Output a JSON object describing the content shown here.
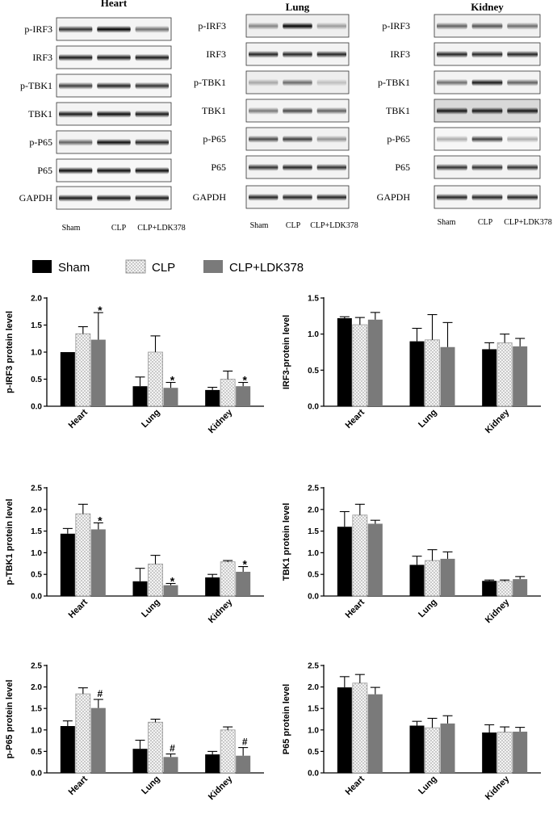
{
  "blot_panels": [
    {
      "tissue": "Heart",
      "rows": [
        "p-IRF3",
        "IRF3",
        "p-TBK1",
        "TBK1",
        "p-P65",
        "P65",
        "GAPDH"
      ],
      "lanes": [
        "Sham",
        "CLP",
        "CLP+LDK378"
      ]
    },
    {
      "tissue": "Lung",
      "rows": [
        "p-IRF3",
        "IRF3",
        "p-TBK1",
        "TBK1",
        "p-P65",
        "P65",
        "GAPDH"
      ],
      "lanes": [
        "Sham",
        "CLP",
        "CLP+LDK378"
      ]
    },
    {
      "tissue": "Kidney",
      "rows": [
        "p-IRF3",
        "IRF3",
        "p-TBK1",
        "TBK1",
        "p-P65",
        "P65",
        "GAPDH"
      ],
      "lanes": [
        "Sham",
        "CLP",
        "CLP+LDK378"
      ]
    }
  ],
  "legend": [
    {
      "name": "Sham",
      "pattern": "solid-black"
    },
    {
      "name": "CLP",
      "pattern": "dotted"
    },
    {
      "name": "CLP+LDK378",
      "pattern": "solid-gray"
    }
  ],
  "colors": {
    "sham": "#000000",
    "clp": "#f4f4f4",
    "clp_dots": "#8a8a8a",
    "ldk": "#7a7a7a"
  },
  "chart_data": [
    {
      "type": "bar",
      "ylabel": "p-IRF3 protein level",
      "categories": [
        "Heart",
        "Lung",
        "Kidney"
      ],
      "ylim": [
        0,
        2.0
      ],
      "ticks": [
        0.0,
        0.5,
        1.0,
        1.5,
        2.0
      ],
      "series": [
        {
          "name": "Sham",
          "values": [
            1.0,
            0.37,
            0.3
          ],
          "errors": [
            0,
            0.17,
            0.05
          ]
        },
        {
          "name": "CLP",
          "values": [
            1.34,
            1.0,
            0.5
          ],
          "errors": [
            0.13,
            0.3,
            0.15
          ]
        },
        {
          "name": "CLP+LDK378",
          "values": [
            1.23,
            0.34,
            0.37
          ],
          "errors": [
            0.5,
            0.1,
            0.07
          ]
        }
      ],
      "annotations": [
        {
          "series": 2,
          "category": 0,
          "text": "*"
        },
        {
          "series": 2,
          "category": 1,
          "text": "*"
        },
        {
          "series": 2,
          "category": 2,
          "text": "*"
        }
      ]
    },
    {
      "type": "bar",
      "ylabel": "IRF3-protein level",
      "categories": [
        "Heart",
        "Lung",
        "Kidney"
      ],
      "ylim": [
        0,
        1.5
      ],
      "ticks": [
        0.0,
        0.5,
        1.0,
        1.5
      ],
      "series": [
        {
          "name": "Sham",
          "values": [
            1.22,
            0.9,
            0.79
          ],
          "errors": [
            0.02,
            0.18,
            0.09
          ]
        },
        {
          "name": "CLP",
          "values": [
            1.13,
            0.92,
            0.88
          ],
          "errors": [
            0.1,
            0.35,
            0.12
          ]
        },
        {
          "name": "CLP+LDK378",
          "values": [
            1.2,
            0.82,
            0.83
          ],
          "errors": [
            0.1,
            0.34,
            0.11
          ]
        }
      ],
      "annotations": []
    },
    {
      "type": "bar",
      "ylabel": "p-TBK1 protein level",
      "categories": [
        "Heart",
        "Lung",
        "Kidney"
      ],
      "ylim": [
        0,
        2.5
      ],
      "ticks": [
        0.0,
        0.5,
        1.0,
        1.5,
        2.0,
        2.5
      ],
      "series": [
        {
          "name": "Sham",
          "values": [
            1.44,
            0.34,
            0.43
          ],
          "errors": [
            0.12,
            0.3,
            0.07
          ]
        },
        {
          "name": "CLP",
          "values": [
            1.9,
            0.74,
            0.79
          ],
          "errors": [
            0.22,
            0.2,
            0.03
          ]
        },
        {
          "name": "CLP+LDK378",
          "values": [
            1.54,
            0.25,
            0.56
          ],
          "errors": [
            0.15,
            0.04,
            0.12
          ]
        }
      ],
      "annotations": [
        {
          "series": 2,
          "category": 0,
          "text": "*"
        },
        {
          "series": 2,
          "category": 1,
          "text": "*"
        },
        {
          "series": 2,
          "category": 2,
          "text": "*"
        }
      ]
    },
    {
      "type": "bar",
      "ylabel": "TBK1 protein level",
      "categories": [
        "Heart",
        "Lung",
        "Kidney"
      ],
      "ylim": [
        0,
        2.5
      ],
      "ticks": [
        0.0,
        0.5,
        1.0,
        1.5,
        2.0,
        2.5
      ],
      "series": [
        {
          "name": "Sham",
          "values": [
            1.6,
            0.72,
            0.35
          ],
          "errors": [
            0.35,
            0.2,
            0.02
          ]
        },
        {
          "name": "CLP",
          "values": [
            1.87,
            0.82,
            0.34
          ],
          "errors": [
            0.25,
            0.25,
            0.03
          ]
        },
        {
          "name": "CLP+LDK378",
          "values": [
            1.67,
            0.86,
            0.39
          ],
          "errors": [
            0.08,
            0.16,
            0.06
          ]
        }
      ],
      "annotations": []
    },
    {
      "type": "bar",
      "ylabel": "p-P65 protein level",
      "categories": [
        "Heart",
        "Lung",
        "Kidney"
      ],
      "ylim": [
        0,
        2.5
      ],
      "ticks": [
        0.0,
        0.5,
        1.0,
        1.5,
        2.0,
        2.5
      ],
      "series": [
        {
          "name": "Sham",
          "values": [
            1.09,
            0.56,
            0.43
          ],
          "errors": [
            0.12,
            0.2,
            0.07
          ]
        },
        {
          "name": "CLP",
          "values": [
            1.84,
            1.18,
            1.0
          ],
          "errors": [
            0.14,
            0.07,
            0.07
          ]
        },
        {
          "name": "CLP+LDK378",
          "values": [
            1.51,
            0.37,
            0.4
          ],
          "errors": [
            0.2,
            0.07,
            0.19
          ]
        }
      ],
      "annotations": [
        {
          "series": 2,
          "category": 0,
          "text": "#"
        },
        {
          "series": 2,
          "category": 1,
          "text": "#"
        },
        {
          "series": 2,
          "category": 2,
          "text": "#"
        }
      ]
    },
    {
      "type": "bar",
      "ylabel": "P65 protein level",
      "categories": [
        "Heart",
        "Lung",
        "Kidney"
      ],
      "ylim": [
        0,
        2.5
      ],
      "ticks": [
        0.0,
        0.5,
        1.0,
        1.5,
        2.0,
        2.5
      ],
      "series": [
        {
          "name": "Sham",
          "values": [
            1.99,
            1.1,
            0.94
          ],
          "errors": [
            0.25,
            0.1,
            0.18
          ]
        },
        {
          "name": "CLP",
          "values": [
            2.09,
            1.05,
            0.95
          ],
          "errors": [
            0.2,
            0.22,
            0.12
          ]
        },
        {
          "name": "CLP+LDK378",
          "values": [
            1.83,
            1.15,
            0.96
          ],
          "errors": [
            0.16,
            0.18,
            0.1
          ]
        }
      ],
      "annotations": []
    }
  ]
}
